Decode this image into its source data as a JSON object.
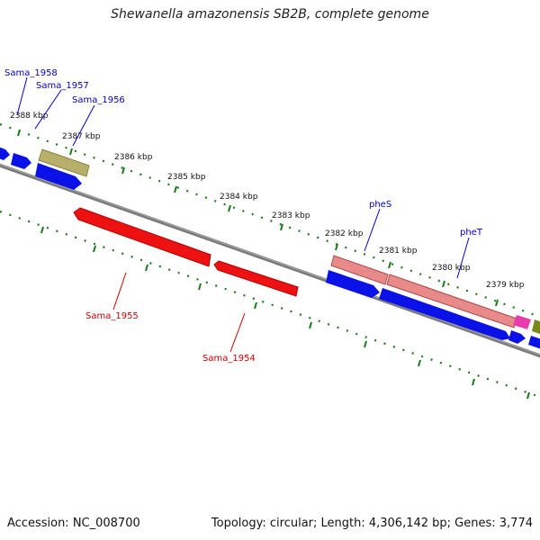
{
  "title": "Shewanella amazonensis SB2B, complete genome",
  "footer": {
    "accession": "Accession: NC_008700",
    "summary": "Topology: circular; Length: 4,306,142 bp; Genes: 3,774"
  },
  "colors": {
    "backbone": "#7a7a7a",
    "tick": "#1a7a1a",
    "cds_forward": "#0a12e8",
    "cds_reverse": "#ee1111",
    "trna": "#b8b06a",
    "phe_genes": "#e98a8a",
    "misc_feature": "#e83cae",
    "misc_feature_2": "#7a8a1a",
    "label_forward": "#0000cc",
    "label_reverse": "#cc0000"
  },
  "kbp_labels": [
    "2388 kbp",
    "2387 kbp",
    "2386 kbp",
    "2385 kbp",
    "2384 kbp",
    "2383 kbp",
    "2382 kbp",
    "2381 kbp",
    "2380 kbp",
    "2379 kbp"
  ],
  "gene_labels": {
    "sama_1958": "Sama_1958",
    "sama_1957": "Sama_1957",
    "sama_1956": "Sama_1956",
    "sama_1955": "Sama_1955",
    "sama_1954": "Sama_1954",
    "pheS": "pheS",
    "pheT": "pheT"
  }
}
